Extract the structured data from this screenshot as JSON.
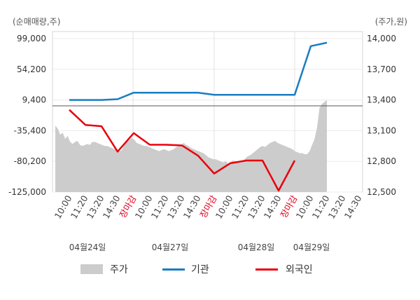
{
  "chart_data": {
    "type": "line",
    "left_axis_unit": "(순매매량,주)",
    "right_axis_unit": "(주가,원)",
    "left_ticks": [
      "99,000",
      "54,200",
      "9,400",
      "-35,400",
      "-80,200",
      "-125,000"
    ],
    "right_ticks": [
      "14,000",
      "13,700",
      "13,400",
      "13,100",
      "12,800",
      "12,500"
    ],
    "left_ylim": [
      -125000,
      99000
    ],
    "right_ylim": [
      12500,
      14000
    ],
    "x_tick_labels": [
      "10:00",
      "11:20",
      "13:20",
      "14:30",
      "장마감",
      "10:00",
      "11:20",
      "13:20",
      "14:30",
      "장마감",
      "10:00",
      "11:20",
      "13:20",
      "14:30",
      "장마감",
      "10:00",
      "11:20",
      "13:20",
      "14:30"
    ],
    "date_labels": [
      "04월24일",
      "04월27일",
      "04월28일",
      "04월29일"
    ],
    "legend": [
      "주가",
      "기관",
      "외국인"
    ],
    "colors": {
      "price": "#cccccc",
      "institution": "#1a7dc2",
      "foreign": "#e8000b",
      "close_label": "#e0001a"
    },
    "price_series": [
      13150,
      13120,
      13060,
      13080,
      13020,
      13050,
      12990,
      12970,
      12990,
      13000,
      12960,
      12950,
      12960,
      12970,
      12960,
      12990,
      12990,
      12980,
      12970,
      12960,
      12950,
      12950,
      12940,
      12930,
      12920,
      12910,
      12900,
      12910,
      12960,
      12990,
      13010,
      13030,
      13010,
      12980,
      12970,
      12960,
      12950,
      12950,
      12940,
      12930,
      12920,
      12910,
      12900,
      12910,
      12920,
      12910,
      12900,
      12910,
      12920,
      12940,
      12950,
      12960,
      12980,
      12960,
      12950,
      12930,
      12920,
      12910,
      12900,
      12890,
      12880,
      12860,
      12840,
      12830,
      12820,
      12820,
      12810,
      12800,
      12790,
      12800,
      12780,
      12790,
      12810,
      12800,
      12790,
      12790,
      12800,
      12830,
      12850,
      12860,
      12880,
      12900,
      12920,
      12940,
      12950,
      12940,
      12960,
      12980,
      12990,
      13000,
      12980,
      12970,
      12960,
      12950,
      12940,
      12930,
      12920,
      12900,
      12890,
      12880,
      12880,
      12870,
      12870,
      12900,
      12960,
      13020,
      13130,
      13320,
      13360,
      13380,
      13400
    ],
    "institution_series": [
      {
        "slot": 0,
        "value": 9400
      },
      {
        "slot": 2,
        "value": 9400
      },
      {
        "slot": 3,
        "value": 10500
      },
      {
        "slot": 4,
        "value": 20000
      },
      {
        "slot": 8,
        "value": 20000
      },
      {
        "slot": 9,
        "value": 17000
      },
      {
        "slot": 14,
        "value": 17000
      },
      {
        "slot": 15,
        "value": 88000
      },
      {
        "slot": 16,
        "value": 93000
      }
    ],
    "foreign_series": [
      {
        "slot": 0,
        "value": -5000
      },
      {
        "slot": 1,
        "value": -27000
      },
      {
        "slot": 2,
        "value": -29000
      },
      {
        "slot": 3,
        "value": -66000
      },
      {
        "slot": 4,
        "value": -39000
      },
      {
        "slot": 5,
        "value": -56000
      },
      {
        "slot": 6,
        "value": -56000
      },
      {
        "slot": 7,
        "value": -57000
      },
      {
        "slot": 8,
        "value": -72000
      },
      {
        "slot": 9,
        "value": -98000
      },
      {
        "slot": 10,
        "value": -83000
      },
      {
        "slot": 11,
        "value": -79000
      },
      {
        "slot": 12,
        "value": -79000
      },
      {
        "slot": 13,
        "value": -123000
      },
      {
        "slot": 14,
        "value": -79000
      }
    ]
  }
}
